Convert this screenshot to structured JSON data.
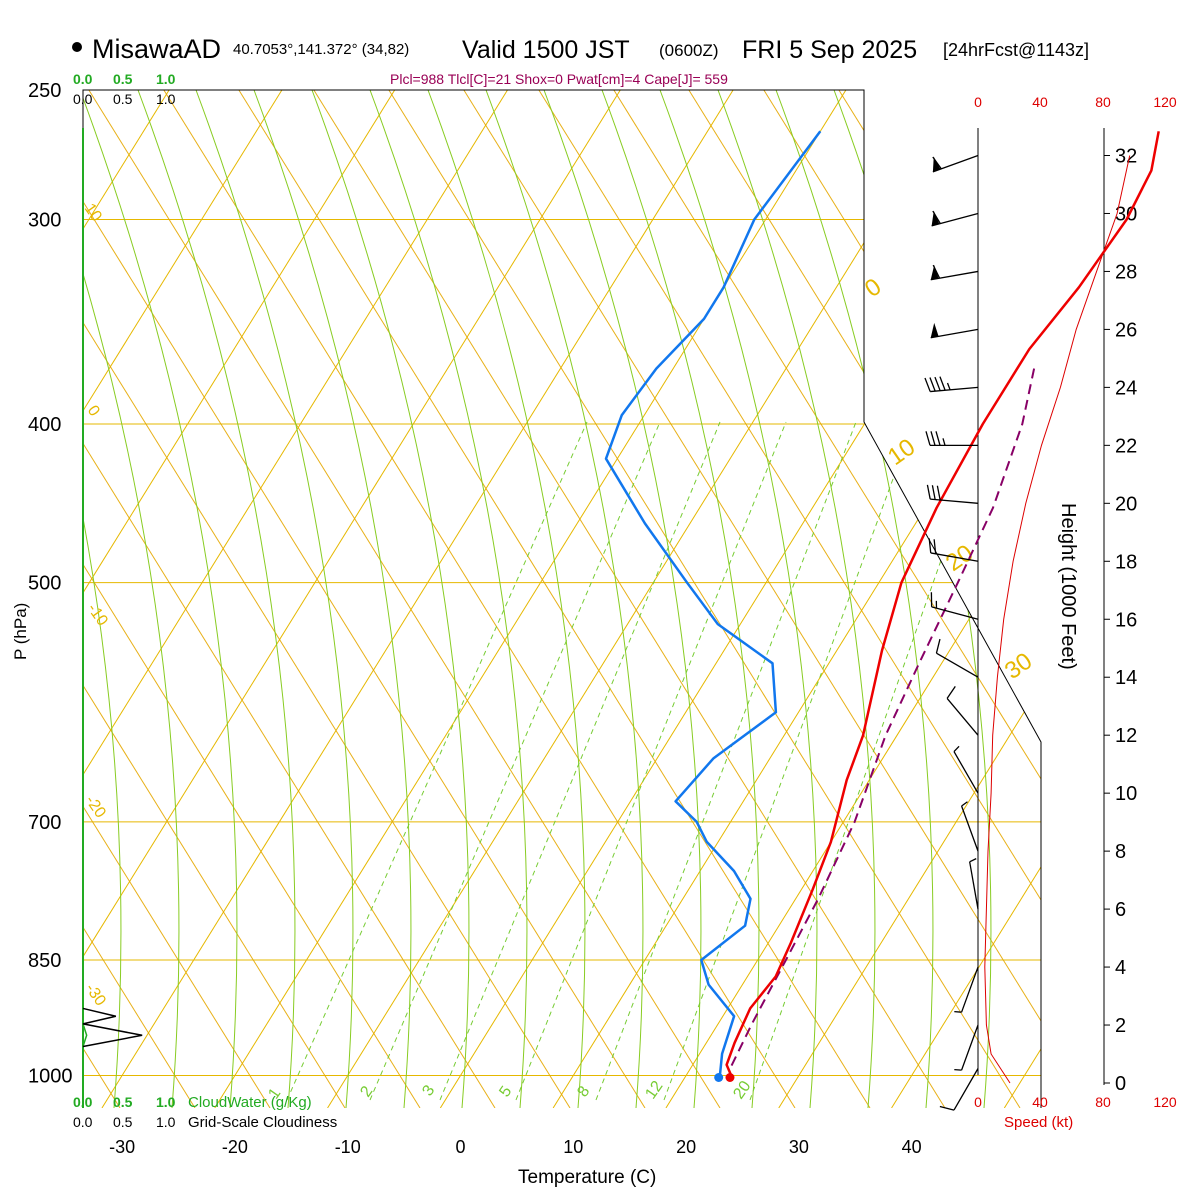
{
  "header": {
    "station": "MisawaAD",
    "coords": "40.7053°,141.372° (34,82)",
    "valid_prefix": "Valid 1500 JST",
    "valid_z": "(0600Z)",
    "valid_date": "FRI 5 Sep 2025",
    "forecast": "[24hrFcst@1143z]",
    "params": "Plcl=988 Tlcl[C]=21 Shox=0 Pwat[cm]=4 Cape[J]= 559"
  },
  "colors": {
    "isotherm": "#e6b800",
    "adiabat": "#e6a800",
    "moist": "#88cc22",
    "mixing": "#77cc33",
    "temp": "#ee0000",
    "dew": "#1177ee",
    "parcel": "#880066",
    "wind": "#000000",
    "speed": "#dd0000",
    "green": "#22aa22"
  },
  "chart_data": {
    "type": "line",
    "title": "MisawaAD Valid 1500 JST (0600Z) FRI 5 Sep 2025 [24hrFcst@1143z]",
    "xlabel": "Temperature (C)",
    "ylabel": "P (hPa)",
    "y2label": "Height (1000 Feet)",
    "x_ticks": [
      -30,
      -20,
      -10,
      0,
      10,
      20,
      30,
      40
    ],
    "x_range": [
      -35,
      42
    ],
    "p_ticks": [
      250,
      300,
      400,
      500,
      700,
      850,
      1000
    ],
    "p_range": [
      250,
      1030
    ],
    "height_ticks": [
      0,
      2,
      4,
      6,
      8,
      10,
      12,
      14,
      16,
      18,
      20,
      22,
      24,
      26,
      28,
      30,
      32
    ],
    "isotherm_labels": [
      "10",
      "0",
      "-10",
      "-20",
      "-30",
      "0",
      "10",
      "20",
      "30"
    ],
    "mixing_ratio_labels": [
      "1",
      "2",
      "3",
      "5",
      "8",
      "12",
      "20"
    ],
    "series": [
      {
        "name": "Temperature",
        "points": [
          [
            10,
            265
          ],
          [
            11.5,
            280
          ],
          [
            12,
            300
          ],
          [
            11.5,
            330
          ],
          [
            10.5,
            360
          ],
          [
            10.5,
            400
          ],
          [
            11,
            450
          ],
          [
            12,
            500
          ],
          [
            14,
            550
          ],
          [
            17,
            620
          ],
          [
            18,
            660
          ],
          [
            20,
            720
          ],
          [
            21,
            770
          ],
          [
            22,
            830
          ],
          [
            22.5,
            870
          ],
          [
            22,
            910
          ],
          [
            22.5,
            955
          ],
          [
            23,
            985
          ],
          [
            24,
            1000
          ]
        ]
      },
      {
        "name": "Dewpoint",
        "points": [
          [
            -20,
            265
          ],
          [
            -21,
            300
          ],
          [
            -20,
            330
          ],
          [
            -20,
            345
          ],
          [
            -21.5,
            370
          ],
          [
            -22,
            395
          ],
          [
            -21,
            420
          ],
          [
            -14,
            460
          ],
          [
            -7,
            500
          ],
          [
            -2,
            530
          ],
          [
            5,
            560
          ],
          [
            8,
            600
          ],
          [
            5,
            640
          ],
          [
            4,
            680
          ],
          [
            7,
            700
          ],
          [
            9,
            720
          ],
          [
            13,
            750
          ],
          [
            16,
            780
          ],
          [
            17,
            810
          ],
          [
            15,
            850
          ],
          [
            17,
            880
          ],
          [
            21,
            920
          ],
          [
            22,
            970
          ],
          [
            23,
            1000
          ]
        ]
      },
      {
        "name": "Parcel",
        "points": [
          [
            12,
            370
          ],
          [
            14,
            400
          ],
          [
            16,
            450
          ],
          [
            17,
            500
          ],
          [
            18,
            560
          ],
          [
            19,
            620
          ],
          [
            21,
            700
          ],
          [
            22,
            780
          ],
          [
            22.5,
            850
          ],
          [
            23,
            930
          ],
          [
            23.5,
            988
          ]
        ]
      }
    ],
    "winds": [
      {
        "h": 32,
        "spd": 60,
        "dir": 250
      },
      {
        "h": 30,
        "spd": 60,
        "dir": 255
      },
      {
        "h": 28,
        "spd": 60,
        "dir": 260
      },
      {
        "h": 26,
        "spd": 50,
        "dir": 260
      },
      {
        "h": 24,
        "spd": 45,
        "dir": 265
      },
      {
        "h": 22,
        "spd": 35,
        "dir": 270
      },
      {
        "h": 20,
        "spd": 30,
        "dir": 275
      },
      {
        "h": 18,
        "spd": 20,
        "dir": 280
      },
      {
        "h": 16,
        "spd": 15,
        "dir": 285
      },
      {
        "h": 14,
        "spd": 12,
        "dir": 300
      },
      {
        "h": 12,
        "spd": 10,
        "dir": 320
      },
      {
        "h": 10,
        "spd": 8,
        "dir": 330
      },
      {
        "h": 8,
        "spd": 5,
        "dir": 340
      },
      {
        "h": 6,
        "spd": 5,
        "dir": 350
      },
      {
        "h": 4,
        "spd": 8,
        "dir": 200
      },
      {
        "h": 2,
        "spd": 8,
        "dir": 200
      },
      {
        "h": 0.5,
        "spd": 10,
        "dir": 210
      }
    ],
    "speed_profile": [
      [
        0,
        20
      ],
      [
        1,
        8
      ],
      [
        2,
        5
      ],
      [
        4,
        4
      ],
      [
        6,
        5
      ],
      [
        8,
        6
      ],
      [
        10,
        8
      ],
      [
        12,
        9
      ],
      [
        14,
        12
      ],
      [
        16,
        16
      ],
      [
        18,
        22
      ],
      [
        20,
        30
      ],
      [
        22,
        40
      ],
      [
        24,
        52
      ],
      [
        26,
        62
      ],
      [
        28,
        75
      ],
      [
        30,
        88
      ],
      [
        32,
        96
      ]
    ],
    "speed_axis": {
      "label": "Speed (kt)",
      "ticks": [
        0,
        40,
        80,
        120
      ]
    },
    "cloud_water": {
      "label": "CloudWater (g/Kg)",
      "ticks": [
        "0.0",
        "0.5",
        "1.0"
      ],
      "profile": [
        [
          0,
          900
        ],
        [
          0,
          930
        ],
        [
          0.05,
          945
        ],
        [
          0,
          960
        ]
      ]
    },
    "grid_cloudiness": {
      "label": "Grid-Scale Cloudiness",
      "ticks": [
        "0.0",
        "0.5",
        "1.0"
      ],
      "profile": [
        [
          0,
          910
        ],
        [
          0.25,
          920
        ],
        [
          0,
          930
        ],
        [
          0.45,
          945
        ],
        [
          0,
          960
        ]
      ]
    }
  }
}
